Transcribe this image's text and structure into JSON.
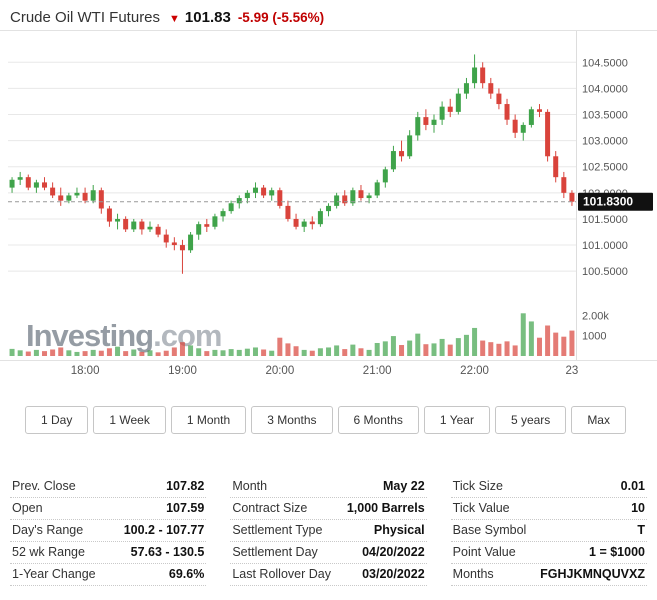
{
  "header": {
    "title": "Crude Oil WTI Futures",
    "direction_arrow": "▼",
    "price": "101.83",
    "change": "-5.99",
    "change_pct": "(-5.56%)"
  },
  "watermark": {
    "bold": "Investing",
    "light": ".com"
  },
  "chart_data": {
    "type": "candlestick",
    "title": "Crude Oil WTI Futures intraday",
    "current_price": 101.83,
    "current_price_label": "101.8300",
    "price_range": [
      100.35,
      104.85
    ],
    "y_ticks": [
      "104.5000",
      "104.0000",
      "103.5000",
      "103.0000",
      "102.5000",
      "102.0000",
      "101.5000",
      "101.0000",
      "100.5000"
    ],
    "volume_ticks": [
      {
        "label": "2.00k",
        "value": 2000
      },
      {
        "label": "1000",
        "value": 1000
      }
    ],
    "volume_max": 3000,
    "x_axis": [
      {
        "index": 9,
        "label": "18:00"
      },
      {
        "index": 21,
        "label": "19:00"
      },
      {
        "index": 33,
        "label": "20:00"
      },
      {
        "index": 45,
        "label": "21:00"
      },
      {
        "index": 57,
        "label": "22:00"
      },
      {
        "index": 69,
        "label": "23"
      }
    ],
    "candles": [
      [
        "17:15",
        102.1,
        102.3,
        102.0,
        102.25
      ],
      [
        "17:20",
        102.25,
        102.4,
        102.15,
        102.3
      ],
      [
        "17:25",
        102.3,
        102.35,
        102.05,
        102.1
      ],
      [
        "17:30",
        102.1,
        102.25,
        102.0,
        102.2
      ],
      [
        "17:35",
        102.2,
        102.3,
        102.05,
        102.1
      ],
      [
        "17:40",
        102.1,
        102.2,
        101.9,
        101.95
      ],
      [
        "17:45",
        101.95,
        102.1,
        101.75,
        101.85
      ],
      [
        "17:50",
        101.85,
        102.0,
        101.8,
        101.95
      ],
      [
        "17:55",
        101.95,
        102.1,
        101.9,
        102.0
      ],
      [
        "18:00",
        102.0,
        102.1,
        101.8,
        101.85
      ],
      [
        "18:05",
        101.85,
        102.15,
        101.8,
        102.05
      ],
      [
        "18:10",
        102.05,
        102.1,
        101.6,
        101.7
      ],
      [
        "18:15",
        101.7,
        101.75,
        101.35,
        101.45
      ],
      [
        "18:20",
        101.45,
        101.6,
        101.3,
        101.5
      ],
      [
        "18:25",
        101.5,
        101.55,
        101.25,
        101.3
      ],
      [
        "18:30",
        101.3,
        101.5,
        101.25,
        101.45
      ],
      [
        "18:35",
        101.45,
        101.5,
        101.2,
        101.3
      ],
      [
        "18:40",
        101.3,
        101.45,
        101.25,
        101.35
      ],
      [
        "18:45",
        101.35,
        101.4,
        101.15,
        101.2
      ],
      [
        "18:50",
        101.2,
        101.3,
        100.95,
        101.05
      ],
      [
        "18:55",
        101.05,
        101.15,
        100.9,
        101.0
      ],
      [
        "19:00",
        101.0,
        101.1,
        100.45,
        100.9
      ],
      [
        "19:05",
        100.9,
        101.25,
        100.85,
        101.2
      ],
      [
        "19:10",
        101.2,
        101.45,
        101.1,
        101.4
      ],
      [
        "19:15",
        101.4,
        101.5,
        101.25,
        101.35
      ],
      [
        "19:20",
        101.35,
        101.6,
        101.3,
        101.55
      ],
      [
        "19:25",
        101.55,
        101.7,
        101.45,
        101.65
      ],
      [
        "19:30",
        101.65,
        101.85,
        101.6,
        101.8
      ],
      [
        "19:35",
        101.8,
        101.95,
        101.7,
        101.9
      ],
      [
        "19:40",
        101.9,
        102.05,
        101.8,
        102.0
      ],
      [
        "19:45",
        102.0,
        102.2,
        101.9,
        102.1
      ],
      [
        "19:50",
        102.1,
        102.15,
        101.9,
        101.95
      ],
      [
        "19:55",
        101.95,
        102.1,
        101.85,
        102.05
      ],
      [
        "20:00",
        102.05,
        102.1,
        101.7,
        101.75
      ],
      [
        "20:05",
        101.75,
        101.85,
        101.45,
        101.5
      ],
      [
        "20:10",
        101.5,
        101.6,
        101.3,
        101.35
      ],
      [
        "20:15",
        101.35,
        101.5,
        101.25,
        101.45
      ],
      [
        "20:20",
        101.45,
        101.55,
        101.3,
        101.4
      ],
      [
        "20:25",
        101.4,
        101.7,
        101.35,
        101.65
      ],
      [
        "20:30",
        101.65,
        101.8,
        101.55,
        101.75
      ],
      [
        "20:35",
        101.75,
        102.0,
        101.7,
        101.95
      ],
      [
        "20:40",
        101.95,
        102.05,
        101.75,
        101.8
      ],
      [
        "20:45",
        101.8,
        102.1,
        101.75,
        102.05
      ],
      [
        "20:50",
        102.05,
        102.15,
        101.85,
        101.9
      ],
      [
        "20:55",
        101.9,
        102.0,
        101.8,
        101.95
      ],
      [
        "21:00",
        101.95,
        102.25,
        101.9,
        102.2
      ],
      [
        "21:05",
        102.2,
        102.5,
        102.1,
        102.45
      ],
      [
        "21:10",
        102.45,
        102.9,
        102.4,
        102.8
      ],
      [
        "21:15",
        102.8,
        103.0,
        102.6,
        102.7
      ],
      [
        "21:20",
        102.7,
        103.2,
        102.65,
        103.1
      ],
      [
        "21:25",
        103.1,
        103.55,
        103.0,
        103.45
      ],
      [
        "21:30",
        103.45,
        103.6,
        103.2,
        103.3
      ],
      [
        "21:35",
        103.3,
        103.5,
        103.15,
        103.4
      ],
      [
        "21:40",
        103.4,
        103.75,
        103.3,
        103.65
      ],
      [
        "21:45",
        103.65,
        103.8,
        103.45,
        103.55
      ],
      [
        "21:50",
        103.55,
        104.0,
        103.5,
        103.9
      ],
      [
        "21:55",
        103.9,
        104.2,
        103.8,
        104.1
      ],
      [
        "22:00",
        104.1,
        104.65,
        104.0,
        104.4
      ],
      [
        "22:05",
        104.4,
        104.5,
        104.0,
        104.1
      ],
      [
        "22:10",
        104.1,
        104.2,
        103.8,
        103.9
      ],
      [
        "22:15",
        103.9,
        104.0,
        103.6,
        103.7
      ],
      [
        "22:20",
        103.7,
        103.8,
        103.3,
        103.4
      ],
      [
        "22:25",
        103.4,
        103.5,
        103.05,
        103.15
      ],
      [
        "22:30",
        103.15,
        103.35,
        103.0,
        103.3
      ],
      [
        "22:35",
        103.3,
        103.65,
        103.25,
        103.6
      ],
      [
        "22:40",
        103.6,
        103.7,
        103.45,
        103.55
      ],
      [
        "22:45",
        103.55,
        103.6,
        102.6,
        102.7
      ],
      [
        "22:50",
        102.7,
        102.8,
        102.2,
        102.3
      ],
      [
        "22:55",
        102.3,
        102.4,
        101.9,
        102.0
      ],
      [
        "23:00",
        102.0,
        102.05,
        101.75,
        101.83
      ]
    ],
    "volumes": [
      350,
      280,
      220,
      300,
      240,
      320,
      420,
      280,
      200,
      240,
      300,
      260,
      380,
      460,
      240,
      320,
      200,
      280,
      180,
      260,
      420,
      680,
      520,
      380,
      240,
      300,
      280,
      340,
      300,
      360,
      420,
      320,
      260,
      900,
      620,
      480,
      300,
      260,
      380,
      420,
      520,
      340,
      560,
      380,
      300,
      640,
      720,
      980,
      540,
      760,
      1100,
      580,
      620,
      840,
      560,
      880,
      1040,
      1380,
      760,
      680,
      600,
      720,
      520,
      2100,
      1700,
      900,
      1500,
      1150,
      950,
      1250
    ],
    "colors": {
      "up": "#3fa34a",
      "down": "#d9433b",
      "change_text": "#c00000",
      "grid": "#e8e8e8",
      "axis_text": "#555555",
      "dashed_line": "#999999",
      "price_label_bg": "#111111",
      "price_label_text": "#ffffff",
      "watermark_bold": "#959ca4",
      "watermark_light": "#b3b8be"
    }
  },
  "timeframes": [
    "1 Day",
    "1 Week",
    "1 Month",
    "3 Months",
    "6 Months",
    "1 Year",
    "5 years",
    "Max"
  ],
  "stats": {
    "columns": [
      {
        "rows": [
          {
            "label": "Prev. Close",
            "value": "107.82"
          },
          {
            "label": "Open",
            "value": "107.59"
          },
          {
            "label": "Day's Range",
            "value": "100.2 - 107.77"
          },
          {
            "label": "52 wk Range",
            "value": "57.63 - 130.5"
          },
          {
            "label": "1-Year Change",
            "value": "69.6%"
          }
        ]
      },
      {
        "rows": [
          {
            "label": "Month",
            "value": "May 22"
          },
          {
            "label": "Contract Size",
            "value": "1,000 Barrels"
          },
          {
            "label": "Settlement Type",
            "value": "Physical"
          },
          {
            "label": "Settlement Day",
            "value": "04/20/2022"
          },
          {
            "label": "Last Rollover Day",
            "value": "03/20/2022"
          }
        ]
      },
      {
        "rows": [
          {
            "label": "Tick Size",
            "value": "0.01"
          },
          {
            "label": "Tick Value",
            "value": "10"
          },
          {
            "label": "Base Symbol",
            "value": "T"
          },
          {
            "label": "Point Value",
            "value": "1 = $1000"
          },
          {
            "label": "Months",
            "value": "FGHJKMNQUVXZ"
          }
        ]
      }
    ]
  }
}
